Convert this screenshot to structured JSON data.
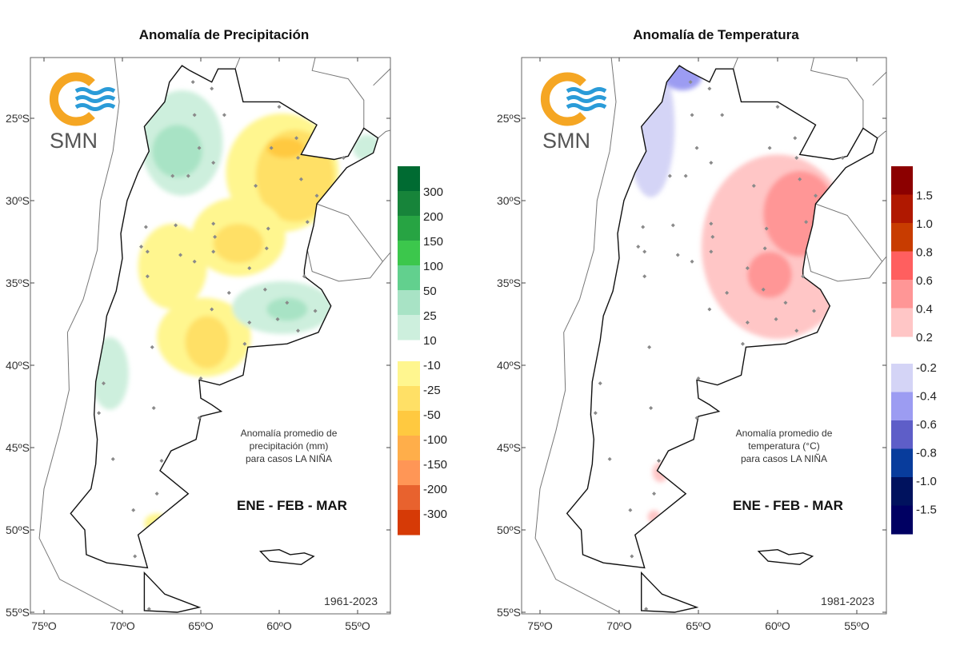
{
  "panels": [
    {
      "id": "precip",
      "title": "Anomalía de Precipitación",
      "logo_text": "SMN",
      "note_lines": [
        "Anomalía promedio de",
        "precipitación (mm)",
        "para casos LA NIÑA"
      ],
      "period": "ENE - FEB - MAR",
      "years": "1961-2023",
      "lat_labels": [
        "25ºS",
        "30ºS",
        "35ºS",
        "40ºS",
        "45ºS",
        "50ºS",
        "55ºS"
      ],
      "lon_labels": [
        "75ºO",
        "70ºO",
        "65ºO",
        "60ºO",
        "55ºO"
      ],
      "legend_positive": {
        "colors": [
          "#006b32",
          "#17843a",
          "#27a443",
          "#3cc74c",
          "#62d08e",
          "#a8e3c5",
          "#cdefdd"
        ],
        "labels": [
          "300",
          "200",
          "150",
          "100",
          "50",
          "25",
          "10"
        ]
      },
      "legend_negative": {
        "colors": [
          "#fff68f",
          "#ffe066",
          "#ffc940",
          "#ffae4a",
          "#ff9656",
          "#e8622e",
          "#d63a06"
        ],
        "labels": [
          "-10",
          "-25",
          "-50",
          "-100",
          "-150",
          "-200",
          "-300"
        ]
      },
      "anomaly_regions": [
        {
          "lon": -66.2,
          "lat": -26.5,
          "rlon": 2.6,
          "rlat": 3.2,
          "value": 10
        },
        {
          "lon": -66.5,
          "lat": -27.0,
          "rlon": 1.6,
          "rlat": 1.6,
          "value": 25
        },
        {
          "lon": -54.4,
          "lat": -26.8,
          "rlon": 0.9,
          "rlat": 0.8,
          "value": 10
        },
        {
          "lon": -59.8,
          "lat": -28.3,
          "rlon": 3.6,
          "rlat": 3.6,
          "value": -10
        },
        {
          "lon": -59.0,
          "lat": -28.5,
          "rlon": 2.5,
          "rlat": 2.8,
          "value": -25
        },
        {
          "lon": -59.6,
          "lat": -26.8,
          "rlon": 1.2,
          "rlat": 0.6,
          "value": -50
        },
        {
          "lon": -62.6,
          "lat": -32.2,
          "rlon": 3.0,
          "rlat": 2.4,
          "value": -10
        },
        {
          "lon": -62.6,
          "lat": -32.6,
          "rlon": 1.6,
          "rlat": 1.2,
          "value": -25
        },
        {
          "lon": -66.8,
          "lat": -34.0,
          "rlon": 2.2,
          "rlat": 2.6,
          "value": -10
        },
        {
          "lon": -64.8,
          "lat": -38.3,
          "rlon": 3.0,
          "rlat": 2.4,
          "value": -10
        },
        {
          "lon": -64.6,
          "lat": -38.6,
          "rlon": 1.4,
          "rlat": 1.6,
          "value": -25
        },
        {
          "lon": -59.8,
          "lat": -36.5,
          "rlon": 3.2,
          "rlat": 1.6,
          "value": 10
        },
        {
          "lon": -59.5,
          "lat": -36.6,
          "rlon": 1.3,
          "rlat": 0.7,
          "value": 25
        },
        {
          "lon": -70.8,
          "lat": -40.5,
          "rlon": 1.2,
          "rlat": 2.2,
          "value": 10
        },
        {
          "lon": -67.8,
          "lat": -49.6,
          "rlon": 0.8,
          "rlat": 0.6,
          "value": -10
        }
      ]
    },
    {
      "id": "temp",
      "title": "Anomalía de Temperatura",
      "logo_text": "SMN",
      "note_lines": [
        "Anomalía promedio de",
        "temperatura (°C)",
        "para casos LA NIÑA"
      ],
      "period": "ENE - FEB - MAR",
      "years": "1981-2023",
      "lat_labels": [
        "25ºS",
        "30ºS",
        "35ºS",
        "40ºS",
        "45ºS",
        "50ºS",
        "55ºS"
      ],
      "lon_labels": [
        "75ºO",
        "70ºO",
        "65ºO",
        "60ºO",
        "55ºO"
      ],
      "legend_positive": {
        "colors": [
          "#8c0000",
          "#b01800",
          "#c83c00",
          "#ff5f5f",
          "#ff9696",
          "#ffc6c6"
        ],
        "labels": [
          "1.5",
          "1.0",
          "0.8",
          "0.6",
          "0.4",
          "0.2"
        ]
      },
      "legend_negative": {
        "colors": [
          "#d4d4f6",
          "#9c9cf2",
          "#5e5ec8",
          "#083c9c",
          "#00125e",
          "#000062"
        ],
        "labels": [
          "-0.2",
          "-0.4",
          "-0.6",
          "-0.8",
          "-1.0",
          "-1.5"
        ]
      },
      "anomaly_regions": [
        {
          "lon": -60.0,
          "lat": -32.8,
          "rlon": 4.8,
          "rlat": 5.6,
          "value": 0.2
        },
        {
          "lon": -58.6,
          "lat": -30.8,
          "rlon": 2.3,
          "rlat": 2.6,
          "value": 0.4
        },
        {
          "lon": -60.5,
          "lat": -34.5,
          "rlon": 1.4,
          "rlat": 1.4,
          "value": 0.4
        },
        {
          "lon": -68.0,
          "lat": -25.5,
          "rlon": 1.5,
          "rlat": 4.3,
          "value": -0.2
        },
        {
          "lon": -66.0,
          "lat": -22.5,
          "rlon": 1.2,
          "rlat": 0.8,
          "value": -0.4
        },
        {
          "lon": -67.4,
          "lat": -46.5,
          "rlon": 0.5,
          "rlat": 0.6,
          "value": 0.2
        },
        {
          "lon": -67.8,
          "lat": -49.2,
          "rlon": 0.4,
          "rlat": 0.4,
          "value": 0.2
        }
      ]
    }
  ],
  "stations": [
    [
      -65.5,
      -22.8
    ],
    [
      -64.3,
      -23.2
    ],
    [
      -63.5,
      -24.8
    ],
    [
      -65.4,
      -24.8
    ],
    [
      -60.0,
      -24.3
    ],
    [
      -65.1,
      -26.8
    ],
    [
      -64.2,
      -27.7
    ],
    [
      -58.9,
      -26.2
    ],
    [
      -60.5,
      -26.8
    ],
    [
      -58.8,
      -27.4
    ],
    [
      -55.9,
      -27.4
    ],
    [
      -58.6,
      -28.7
    ],
    [
      -66.8,
      -28.5
    ],
    [
      -65.8,
      -28.5
    ],
    [
      -61.5,
      -29.1
    ],
    [
      -57.6,
      -29.7
    ],
    [
      -68.5,
      -31.6
    ],
    [
      -66.6,
      -31.5
    ],
    [
      -64.2,
      -31.4
    ],
    [
      -60.7,
      -31.7
    ],
    [
      -58.2,
      -31.3
    ],
    [
      -64.1,
      -32.2
    ],
    [
      -60.8,
      -32.9
    ],
    [
      -68.8,
      -32.8
    ],
    [
      -68.4,
      -33.1
    ],
    [
      -66.3,
      -33.3
    ],
    [
      -64.2,
      -33.1
    ],
    [
      -65.4,
      -33.7
    ],
    [
      -68.4,
      -34.6
    ],
    [
      -61.9,
      -34.1
    ],
    [
      -63.2,
      -35.6
    ],
    [
      -60.9,
      -35.4
    ],
    [
      -58.4,
      -34.6
    ],
    [
      -59.5,
      -36.2
    ],
    [
      -57.7,
      -36.7
    ],
    [
      -61.9,
      -37.4
    ],
    [
      -60.1,
      -37.2
    ],
    [
      -58.8,
      -37.9
    ],
    [
      -62.2,
      -38.7
    ],
    [
      -64.3,
      -36.6
    ],
    [
      -68.1,
      -38.9
    ],
    [
      -65.0,
      -40.8
    ],
    [
      -71.2,
      -41.1
    ],
    [
      -68.0,
      -42.6
    ],
    [
      -65.1,
      -43.2
    ],
    [
      -71.5,
      -42.9
    ],
    [
      -67.5,
      -45.8
    ],
    [
      -70.6,
      -45.7
    ],
    [
      -69.3,
      -48.8
    ],
    [
      -69.2,
      -51.6
    ],
    [
      -68.3,
      -54.8
    ],
    [
      -67.8,
      -47.8
    ]
  ]
}
